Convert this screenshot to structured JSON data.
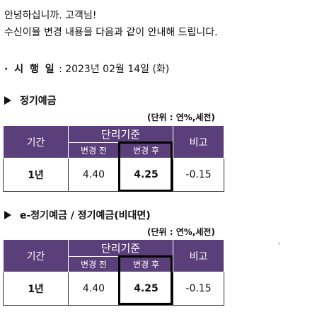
{
  "notice": {
    "greeting": "안녕하십니까. 고객님!",
    "intro": "수신이율 변경 내용을 다음과 같이 안내해 드립니다.",
    "date_label": "· 시 행 일",
    "date_value": " : 2023년 02월 14일 (화)"
  },
  "sections": [
    {
      "title": "정기예금",
      "unit": "(단위 : 연%,세전)",
      "table": {
        "col_period": "기간",
        "col_group": "단리기준",
        "col_before": "변경 전",
        "col_after": "변경 후",
        "col_note": "비고",
        "row": {
          "period": "1년",
          "before": "4.40",
          "after": "4.25",
          "note": "-0.15"
        }
      }
    },
    {
      "title": "e-정기예금 / 정기예금(비대면)",
      "unit": "(단위 : 연%,세전)",
      "table": {
        "col_period": "기간",
        "col_group": "단리기준",
        "col_before": "변경 전",
        "col_after": "변경 후",
        "col_note": "비고",
        "row": {
          "period": "1년",
          "before": "4.40",
          "after": "4.25",
          "note": "-0.15"
        }
      }
    }
  ],
  "stray_mark": "`"
}
